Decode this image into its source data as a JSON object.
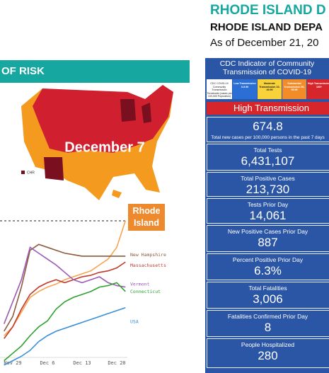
{
  "header": {
    "title": "RHODE ISLAND D",
    "subtitle": "RHODE ISLAND DEPA",
    "date": "As of December 21, 20"
  },
  "risk_banner": "OF RISK",
  "map": {
    "label": "December 7",
    "legend": "CHR"
  },
  "chart_data": {
    "type": "line",
    "x": [
      null,
      "Nov 29",
      null,
      null,
      null,
      "Dec 6",
      null,
      null,
      null,
      "Dec 13",
      null,
      null,
      null,
      "Dec 20",
      null
    ],
    "ylim": [
      0,
      100
    ],
    "series": [
      {
        "name": "Rhode Island",
        "color": "#f5a44e",
        "values": [
          22,
          28,
          38,
          48,
          52,
          55,
          57,
          60,
          62,
          64,
          66,
          70,
          74,
          82,
          100
        ]
      },
      {
        "name": "New Hampshire",
        "color": "#8b5a3c",
        "values": [
          25,
          35,
          55,
          80,
          84,
          82,
          80,
          78,
          77,
          76,
          76,
          76,
          76,
          76,
          76
        ]
      },
      {
        "name": "Massachusetts",
        "color": "#c0392b",
        "values": [
          20,
          28,
          40,
          50,
          55,
          58,
          60,
          58,
          60,
          62,
          63,
          65,
          66,
          68,
          72
        ]
      },
      {
        "name": "Vermont",
        "color": "#9b59b6",
        "values": [
          30,
          45,
          60,
          82,
          78,
          74,
          70,
          65,
          60,
          58,
          60,
          62,
          58,
          56,
          55
        ]
      },
      {
        "name": "Connecticut",
        "color": "#2ca02c",
        "values": [
          5,
          10,
          15,
          22,
          28,
          32,
          40,
          45,
          48,
          50,
          52,
          55,
          56,
          58,
          52
        ]
      },
      {
        "name": "USA",
        "color": "#3b8fd6",
        "values": [
          2,
          5,
          8,
          12,
          18,
          22,
          25,
          27,
          29,
          31,
          33,
          35,
          37,
          39,
          41
        ]
      }
    ]
  },
  "cdc": {
    "title": "CDC Indicator of Community Transmission of COVID-19",
    "legend": [
      {
        "text": "CDC COVID-19 Community Transmission Thresholds (cases per 100,000 Population)",
        "color": "#ffffff"
      },
      {
        "text": "Low Transmission 0-9.99",
        "color": "#2b6fd6"
      },
      {
        "text": "Moderate Transmission 10-49.99",
        "color": "#f7d23a"
      },
      {
        "text": "Substantial Transmission 50-99.99",
        "color": "#f28c28"
      },
      {
        "text": "High Transmission 100+",
        "color": "#d7262b"
      }
    ],
    "level": "High Transmission"
  },
  "stats": [
    {
      "value": "674.8",
      "label": "Total new cases per 100,000 persons in the past 7 days"
    },
    {
      "label": "Total Tests",
      "value": "6,431,107"
    },
    {
      "label": "Total Positive Cases",
      "value": "213,730"
    },
    {
      "label": "Tests Prior Day",
      "value": "14,061"
    },
    {
      "label": "New Positive Cases Prior Day",
      "value": "887"
    },
    {
      "label": "Percent Positive Prior Day",
      "value": "6.3%"
    },
    {
      "label": "Total Fatalities",
      "value": "3,006"
    },
    {
      "label": "Fatalities Confirmed Prior Day",
      "value": "8"
    },
    {
      "label": "People Hospitalized",
      "value": "280"
    }
  ]
}
